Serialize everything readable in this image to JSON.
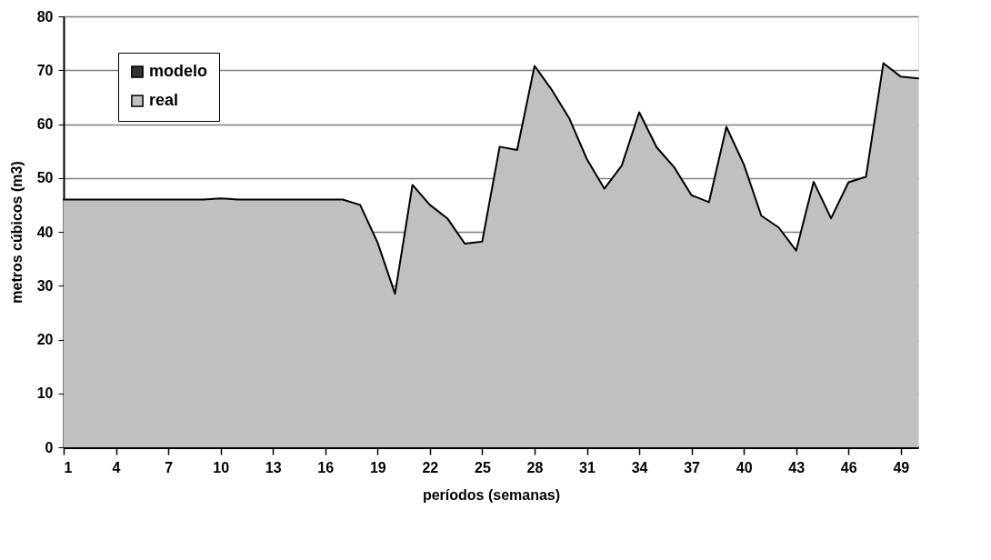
{
  "chart_data": {
    "type": "area",
    "xlabel": "períodos (semanas)",
    "ylabel": "metros cúbicos (m3)",
    "x": [
      1,
      2,
      3,
      4,
      5,
      6,
      7,
      8,
      9,
      10,
      11,
      12,
      13,
      14,
      15,
      16,
      17,
      18,
      19,
      20,
      21,
      22,
      23,
      24,
      25,
      26,
      27,
      28,
      29,
      30,
      31,
      32,
      33,
      34,
      35,
      36,
      37,
      38,
      39,
      40,
      41,
      42,
      43,
      44,
      45,
      46,
      47,
      48,
      49,
      50
    ],
    "series": [
      {
        "name": "modelo",
        "color": "#333333",
        "values": [
          null,
          null,
          null,
          null,
          null,
          null,
          null,
          null,
          null,
          null,
          null,
          null,
          null,
          null,
          null,
          null,
          null,
          null,
          null,
          null,
          null,
          null,
          null,
          null,
          null,
          null,
          null,
          null,
          null,
          null,
          null,
          null,
          null,
          null,
          null,
          null,
          null,
          null,
          null,
          null,
          null,
          null,
          null,
          null,
          null,
          null,
          null,
          null,
          null,
          null
        ]
      },
      {
        "name": "real",
        "color": "#c0c0c0",
        "values": [
          46,
          46,
          46,
          46,
          46,
          46,
          46,
          46,
          46,
          46.2,
          46,
          46,
          46,
          46,
          46,
          46,
          46,
          45,
          38,
          28.5,
          48.7,
          45,
          42.5,
          37.8,
          38.2,
          55.8,
          55.2,
          70.8,
          66.3,
          61,
          53.5,
          48,
          52.3,
          62.2,
          55.7,
          52,
          46.8,
          45.5,
          59.5,
          52.5,
          43,
          40.8,
          36.5,
          49.3,
          42.5,
          49.2,
          50.2,
          71.3,
          68.8,
          68.5
        ]
      }
    ],
    "xlim": [
      1,
      50
    ],
    "xticks": [
      1,
      4,
      7,
      10,
      13,
      16,
      19,
      22,
      25,
      28,
      31,
      34,
      37,
      40,
      43,
      46,
      49
    ],
    "ylim": [
      0,
      80
    ],
    "yticks": [
      0,
      10,
      20,
      30,
      40,
      50,
      60,
      70,
      80
    ],
    "grid": "y",
    "legend": "top left"
  }
}
